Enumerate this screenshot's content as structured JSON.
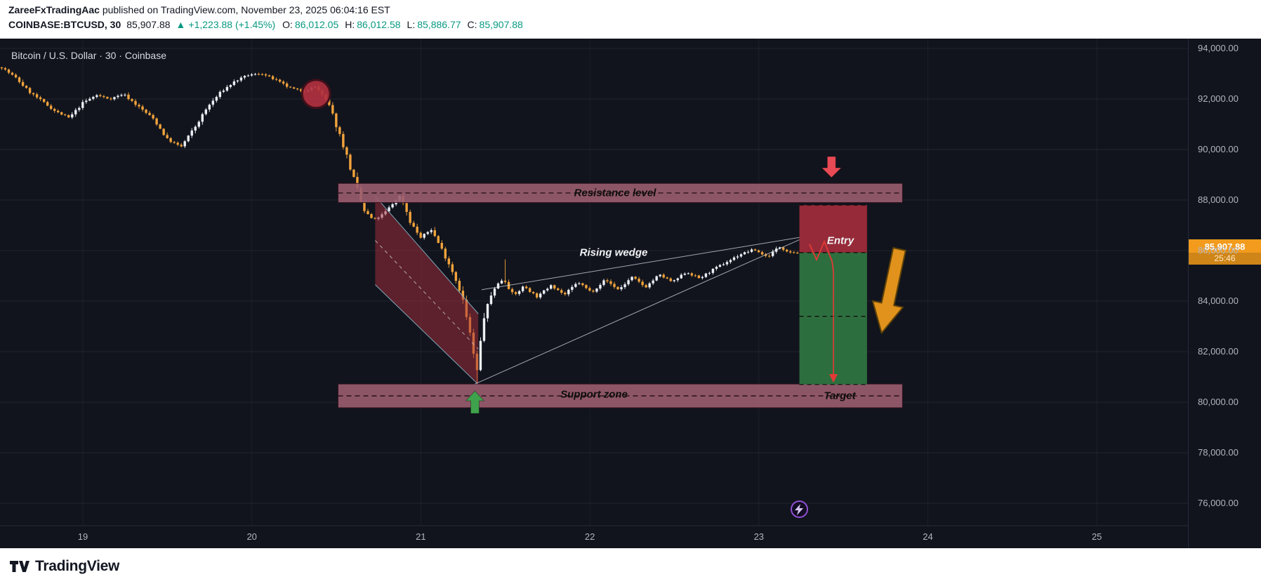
{
  "header": {
    "author": "ZareeFxTradingAac",
    "published_rest": " published on TradingView.com, November 23, 2025 06:04:16 EST",
    "symbol": "COINBASE:BTCUSD, 30",
    "last_price": "85,907.88",
    "change_icon": "▲",
    "change": "+1,223.88 (+1.45%)",
    "o_label": "O:",
    "o_value": "86,012.05",
    "h_label": "H:",
    "h_value": "86,012.58",
    "l_label": "L:",
    "l_value": "85,886.77",
    "c_label": "C:",
    "c_value": "85,907.88"
  },
  "chart": {
    "title": "Bitcoin / U.S. Dollar · 30 · Coinbase",
    "price_axis_labels": [
      "94,000.00",
      "92,000.00",
      "90,000.00",
      "88,000.00",
      "86,000.00",
      "84,000.00",
      "82,000.00",
      "80,000.00",
      "78,000.00",
      "76,000.00"
    ],
    "time_axis_labels": [
      "19",
      "20",
      "21",
      "22",
      "23",
      "24",
      "25"
    ],
    "price_label": {
      "price": "85,907.88",
      "countdown": "25:46"
    }
  },
  "footer": {
    "brand": "TradingView"
  },
  "colors": {
    "chart_bg": "#11141d",
    "up_candle": "#eceff4",
    "down_candle": "#f2a33c",
    "teal": "#089981",
    "zone_fill": "rgba(155,93,112,0.9)",
    "zone_border": "rgba(48,16,30,0.95)",
    "channel_fill": "rgba(168,46,60,0.5)",
    "channel_edge": "rgba(141,192,211,0.85)",
    "entry_box": "#9e2b3a",
    "target_box": "#2f7340",
    "signal_red": "#e84a55",
    "signal_green": "#3fa24c",
    "big_arrow_orange": "#e0921c",
    "axis_text": "#b2b5be",
    "price_tag_bg": "#f29b1d",
    "purple": "#8f4fd1"
  },
  "chart_data": {
    "type": "candlestick",
    "symbol": "BTCUSD",
    "exchange": "Coinbase",
    "interval_minutes": 30,
    "title": "Bitcoin / U.S. Dollar · 30 · Coinbase",
    "ohlc_current": {
      "open": 86012.05,
      "high": 86012.58,
      "low": 85886.77,
      "close": 85907.88,
      "change": 1223.88,
      "change_pct": 1.45
    },
    "y_axis": {
      "min": 75500,
      "max": 94400,
      "ticks": [
        94000,
        92000,
        90000,
        88000,
        86000,
        84000,
        82000,
        80000,
        78000,
        76000
      ]
    },
    "x_axis": {
      "days": [
        19,
        20,
        21,
        22,
        23,
        24,
        25
      ],
      "month": "November",
      "year": 2025
    },
    "price_path_anchors": [
      [
        18.52,
        93250
      ],
      [
        18.6,
        92850
      ],
      [
        18.68,
        92300
      ],
      [
        18.76,
        91900
      ],
      [
        18.84,
        91500
      ],
      [
        18.92,
        91250
      ],
      [
        19.0,
        91850
      ],
      [
        19.08,
        92150
      ],
      [
        19.16,
        92000
      ],
      [
        19.24,
        92200
      ],
      [
        19.32,
        91750
      ],
      [
        19.42,
        91200
      ],
      [
        19.5,
        90400
      ],
      [
        19.58,
        90100
      ],
      [
        19.66,
        90850
      ],
      [
        19.74,
        91700
      ],
      [
        19.82,
        92300
      ],
      [
        19.9,
        92700
      ],
      [
        19.98,
        92950
      ],
      [
        20.06,
        93000
      ],
      [
        20.14,
        92750
      ],
      [
        20.22,
        92450
      ],
      [
        20.3,
        92300
      ],
      [
        20.38,
        92500
      ],
      [
        20.46,
        91700
      ],
      [
        20.54,
        90200
      ],
      [
        20.6,
        88900
      ],
      [
        20.66,
        87600
      ],
      [
        20.72,
        87200
      ],
      [
        20.78,
        87450
      ],
      [
        20.84,
        87900
      ],
      [
        20.88,
        88200
      ],
      [
        20.94,
        87100
      ],
      [
        21.0,
        86500
      ],
      [
        21.06,
        86850
      ],
      [
        21.12,
        86100
      ],
      [
        21.18,
        85300
      ],
      [
        21.24,
        84300
      ],
      [
        21.3,
        82400
      ],
      [
        21.33,
        81100
      ],
      [
        21.37,
        83300
      ],
      [
        21.43,
        84500
      ],
      [
        21.49,
        84900
      ],
      [
        21.55,
        84200
      ],
      [
        21.61,
        84600
      ],
      [
        21.69,
        84150
      ],
      [
        21.77,
        84650
      ],
      [
        21.85,
        84250
      ],
      [
        21.93,
        84750
      ],
      [
        22.01,
        84350
      ],
      [
        22.09,
        84850
      ],
      [
        22.17,
        84450
      ],
      [
        22.25,
        84950
      ],
      [
        22.33,
        84550
      ],
      [
        22.41,
        85050
      ],
      [
        22.49,
        84750
      ],
      [
        22.57,
        85150
      ],
      [
        22.65,
        84900
      ],
      [
        22.73,
        85250
      ],
      [
        22.81,
        85550
      ],
      [
        22.89,
        85850
      ],
      [
        22.97,
        86050
      ],
      [
        23.05,
        85750
      ],
      [
        23.12,
        86150
      ],
      [
        23.18,
        85950
      ],
      [
        23.23,
        85907.88
      ]
    ],
    "annotations": {
      "resistance_zone": {
        "label": "Resistance level",
        "price_top": 88660,
        "price_bottom": 87900,
        "day_start": 20.51,
        "day_end": 23.85
      },
      "support_zone": {
        "label": "Support zone",
        "price_top": 80720,
        "price_bottom": 79780,
        "day_start": 20.51,
        "day_end": 23.85
      },
      "falling_channel": {
        "points_day_price": [
          [
            20.73,
            88150
          ],
          [
            21.34,
            83500
          ],
          [
            21.34,
            80700
          ],
          [
            20.73,
            84650
          ]
        ]
      },
      "rising_wedge": {
        "label": "Rising wedge",
        "upper_line": [
          [
            21.36,
            84450
          ],
          [
            23.24,
            86520
          ]
        ],
        "lower_line": [
          [
            21.32,
            80720
          ],
          [
            23.24,
            86430
          ]
        ]
      },
      "entry_box": {
        "label": "Entry",
        "day_start": 23.24,
        "day_end": 23.64,
        "price_top": 87800,
        "price_bottom": 85920
      },
      "target_box": {
        "label": "Target",
        "day_start": 23.24,
        "day_end": 23.64,
        "price_top": 85920,
        "price_bottom": 80700,
        "dashed_level": 83400
      },
      "highlight_circle": {
        "day": 20.38,
        "price": 92200
      },
      "sell_arrow_day": 23.43,
      "bounce_arrow_day": 21.32,
      "big_arrow_day": 23.83
    }
  }
}
